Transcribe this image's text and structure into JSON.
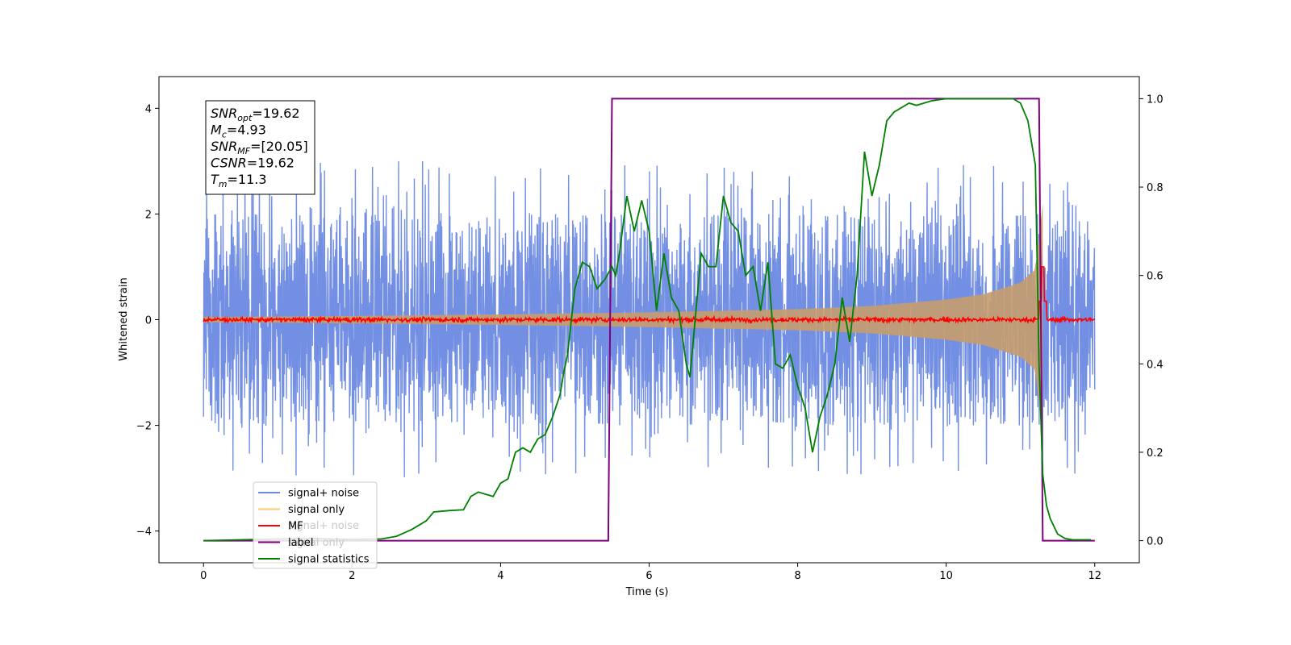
{
  "chart_data": {
    "type": "line",
    "title": "",
    "xlabel": "Time (s)",
    "ylabel": "Whitened strain",
    "y2label": "",
    "xlim": [
      -0.6,
      12.6
    ],
    "ylim": [
      -4.6,
      4.6
    ],
    "y2lim": [
      -0.05,
      1.05
    ],
    "xticks": [
      0,
      2,
      4,
      6,
      8,
      10,
      12
    ],
    "yticks": [
      -4,
      -2,
      0,
      2,
      4
    ],
    "y2ticks": [
      0.0,
      0.2,
      0.4,
      0.6,
      0.8,
      1.0
    ],
    "xtick_labels": [
      "0",
      "2",
      "4",
      "6",
      "8",
      "10",
      "12"
    ],
    "ytick_labels": [
      "−4",
      "−2",
      "0",
      "2",
      "4"
    ],
    "y2tick_labels": [
      "0.0",
      "0.2",
      "0.4",
      "0.6",
      "0.8",
      "1.0"
    ],
    "grid": false,
    "legend_placement": "lower-left",
    "legend": [
      {
        "label": "signal+ noise",
        "color": "#6a89e2"
      },
      {
        "label": "signal only",
        "color": "#ffc76e"
      },
      {
        "label": "MF",
        "color": "#ff0000"
      },
      {
        "label": "label",
        "color": "#800080"
      },
      {
        "label": "signal statistics",
        "color": "#008000"
      }
    ],
    "legend_ghost": [
      "signal+ noise",
      "signal only"
    ],
    "annotation": [
      {
        "base": "SNR",
        "sub": "opt",
        "rest": "=19.62"
      },
      {
        "base": "M",
        "sub": "c",
        "rest": "=4.93"
      },
      {
        "base": "SNR",
        "sub": "MF",
        "rest": "=[20.05]"
      },
      {
        "base": "CSNR",
        "sub": "",
        "rest": "=19.62"
      },
      {
        "base": "T",
        "sub": "m",
        "rest": "=11.3"
      }
    ],
    "series": [
      {
        "name": "signal+ noise",
        "axis": "left",
        "color": "#6a89e2",
        "x_range": [
          0,
          12
        ],
        "envelope_positive": [
          3.0,
          3.3
        ],
        "envelope_negative": [
          -3.0,
          -3.4
        ],
        "core_band": [
          -1.2,
          1.2
        ]
      },
      {
        "name": "signal only",
        "axis": "left",
        "color": "#c69c6d",
        "x_range": [
          0,
          11.3
        ],
        "amplitude": {
          "x": [
            0,
            2,
            4,
            6,
            8,
            9,
            10,
            10.5,
            11,
            11.2,
            11.3
          ],
          "y": [
            0.05,
            0.07,
            0.1,
            0.14,
            0.2,
            0.26,
            0.38,
            0.48,
            0.7,
            0.95,
            2.2
          ]
        }
      },
      {
        "name": "MF",
        "axis": "left",
        "color": "#ff0000",
        "x_range": [
          0,
          12
        ],
        "noise_amplitude": 0.05,
        "peak": {
          "x": 11.3,
          "y": 1.0
        }
      },
      {
        "name": "label",
        "axis": "right",
        "color": "#800080",
        "x": [
          0,
          5.45,
          5.5,
          11.25,
          11.3,
          12
        ],
        "y": [
          0,
          0,
          1,
          1,
          0,
          0
        ]
      },
      {
        "name": "signal statistics",
        "axis": "right",
        "color": "#008000",
        "x": [
          0,
          0.5,
          1.0,
          1.5,
          2.0,
          2.4,
          2.6,
          2.8,
          3.0,
          3.1,
          3.3,
          3.5,
          3.6,
          3.7,
          3.9,
          4.0,
          4.1,
          4.2,
          4.3,
          4.4,
          4.5,
          4.6,
          4.7,
          4.8,
          4.85,
          4.9,
          5.0,
          5.1,
          5.2,
          5.3,
          5.4,
          5.5,
          5.55,
          5.6,
          5.7,
          5.8,
          5.9,
          6.0,
          6.1,
          6.2,
          6.3,
          6.4,
          6.5,
          6.55,
          6.7,
          6.8,
          6.9,
          7.0,
          7.1,
          7.2,
          7.3,
          7.4,
          7.5,
          7.6,
          7.7,
          7.8,
          7.9,
          8.0,
          8.1,
          8.2,
          8.3,
          8.4,
          8.5,
          8.6,
          8.7,
          8.8,
          8.9,
          9.0,
          9.1,
          9.2,
          9.3,
          9.4,
          9.5,
          9.6,
          9.7,
          9.8,
          10.0,
          10.2,
          10.4,
          10.6,
          10.8,
          10.9,
          11.0,
          11.1,
          11.2,
          11.25,
          11.3,
          11.35,
          11.4,
          11.5,
          11.6,
          11.7,
          11.95
        ],
        "y": [
          0,
          0.002,
          0.004,
          0.005,
          0.003,
          0.004,
          0.01,
          0.025,
          0.045,
          0.065,
          0.068,
          0.07,
          0.1,
          0.11,
          0.1,
          0.13,
          0.14,
          0.2,
          0.21,
          0.2,
          0.23,
          0.24,
          0.28,
          0.33,
          0.38,
          0.42,
          0.57,
          0.63,
          0.62,
          0.57,
          0.59,
          0.62,
          0.6,
          0.65,
          0.78,
          0.7,
          0.77,
          0.7,
          0.52,
          0.65,
          0.55,
          0.52,
          0.4,
          0.37,
          0.65,
          0.62,
          0.62,
          0.78,
          0.72,
          0.7,
          0.6,
          0.62,
          0.52,
          0.63,
          0.4,
          0.39,
          0.42,
          0.35,
          0.3,
          0.2,
          0.28,
          0.33,
          0.4,
          0.55,
          0.45,
          0.6,
          0.88,
          0.78,
          0.85,
          0.95,
          0.97,
          0.98,
          0.99,
          0.985,
          0.99,
          0.995,
          1.0,
          1.0,
          1.0,
          1.0,
          1.0,
          1.0,
          0.99,
          0.95,
          0.85,
          0.4,
          0.15,
          0.08,
          0.05,
          0.015,
          0.005,
          0.002,
          0.002
        ]
      }
    ]
  }
}
